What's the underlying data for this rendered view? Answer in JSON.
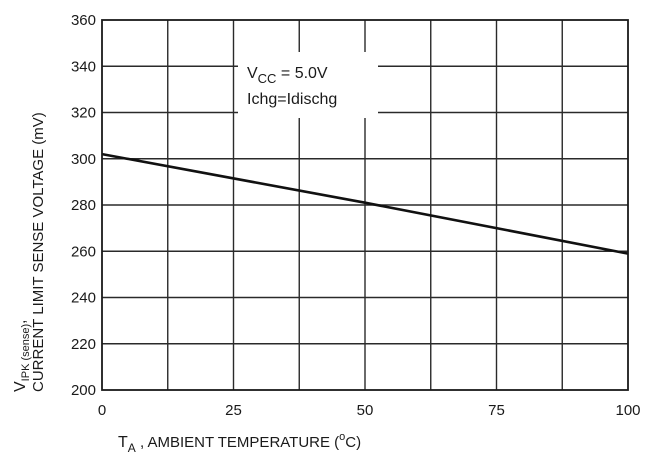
{
  "chart_data": {
    "type": "line",
    "xlabel": {
      "symbol": "T",
      "subscript": "A",
      "text": " , AMBIENT TEMPERATURE (",
      "unit_sup": "o",
      "unit": "C)"
    },
    "ylabel": {
      "symbol": "V",
      "subscript": "IPK (sense)",
      "line1_suffix": ",",
      "line2": "CURRENT LIMIT SENSE VOLTAGE  (mV)"
    },
    "xlim": [
      0,
      100
    ],
    "ylim": [
      200,
      360
    ],
    "xticks": [
      0,
      25,
      50,
      75,
      100
    ],
    "xtick_labels": [
      "0",
      "25",
      "50",
      "75",
      "100"
    ],
    "xgrid": [
      0,
      12.5,
      25,
      37.5,
      50,
      62.5,
      75,
      87.5,
      100
    ],
    "yticks": [
      200,
      220,
      240,
      260,
      280,
      300,
      320,
      340,
      360
    ],
    "ytick_labels": [
      "200",
      "220",
      "240",
      "260",
      "280",
      "300",
      "320",
      "340",
      "360"
    ],
    "grid": true,
    "series": [
      {
        "x": [
          0,
          50,
          100
        ],
        "y": [
          302,
          281,
          259
        ]
      }
    ],
    "annotations": [
      {
        "symbol": "V",
        "subscript": "CC",
        "text": " = 5.0V"
      },
      {
        "text": "Ichg=Idischg"
      }
    ]
  }
}
